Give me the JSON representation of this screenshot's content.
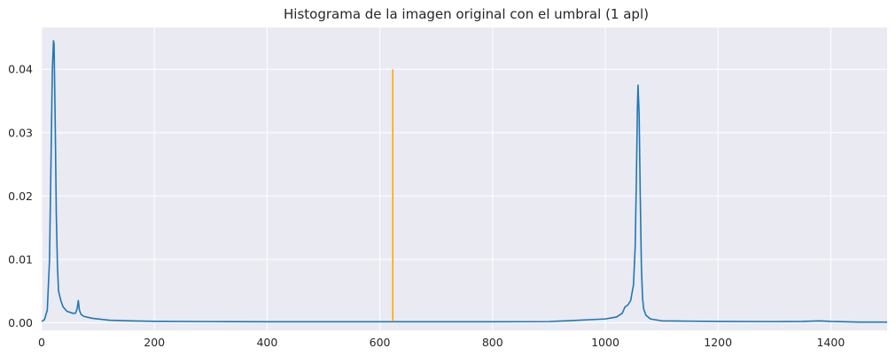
{
  "chart_data": {
    "type": "line",
    "title": "Histograma de la imagen original con el umbral (1 apl)",
    "xlabel": "",
    "ylabel": "",
    "xlim": [
      0,
      1500
    ],
    "ylim": [
      -0.0012,
      0.0466
    ],
    "grid": true,
    "background": "#eaeaf2",
    "grid_color": "#ffffff",
    "x_ticks": [
      0,
      200,
      400,
      600,
      800,
      1000,
      1200,
      1400
    ],
    "y_ticks": [
      0.0,
      0.01,
      0.02,
      0.03,
      0.04
    ],
    "x_tick_labels": [
      "0",
      "200",
      "400",
      "600",
      "800",
      "1000",
      "1200",
      "1400"
    ],
    "y_tick_labels": [
      "0.00",
      "0.01",
      "0.02",
      "0.03",
      "0.04"
    ],
    "series": [
      {
        "color": "#1f77b4",
        "x": [
          0,
          5,
          10,
          14,
          17,
          19,
          21,
          22,
          24,
          26,
          28,
          30,
          34,
          38,
          45,
          55,
          60,
          63,
          65,
          67,
          70,
          75,
          90,
          120,
          160,
          200,
          300,
          400,
          500,
          600,
          700,
          800,
          900,
          1000,
          1020,
          1030,
          1035,
          1040,
          1045,
          1050,
          1053,
          1055,
          1057,
          1058,
          1060,
          1062,
          1064,
          1066,
          1068,
          1072,
          1080,
          1100,
          1150,
          1200,
          1300,
          1350,
          1380,
          1400,
          1450,
          1500
        ],
        "y": [
          0.0002,
          0.0005,
          0.002,
          0.01,
          0.028,
          0.04,
          0.0445,
          0.044,
          0.032,
          0.017,
          0.009,
          0.005,
          0.0035,
          0.0025,
          0.0018,
          0.0015,
          0.0015,
          0.0022,
          0.0035,
          0.002,
          0.0013,
          0.001,
          0.0007,
          0.0004,
          0.0003,
          0.00022,
          0.00018,
          0.00016,
          0.00015,
          0.00015,
          0.00015,
          0.00015,
          0.00018,
          0.0006,
          0.0009,
          0.0015,
          0.0025,
          0.0028,
          0.0035,
          0.006,
          0.012,
          0.022,
          0.034,
          0.0375,
          0.033,
          0.02,
          0.009,
          0.004,
          0.0022,
          0.0012,
          0.0006,
          0.0003,
          0.00025,
          0.0002,
          0.00018,
          0.0002,
          0.0003,
          0.0002,
          0.0001,
          0.0001
        ]
      },
      {
        "color": "#ffa500",
        "x": [
          623,
          623
        ],
        "y": [
          0.0002,
          0.04
        ]
      }
    ]
  }
}
